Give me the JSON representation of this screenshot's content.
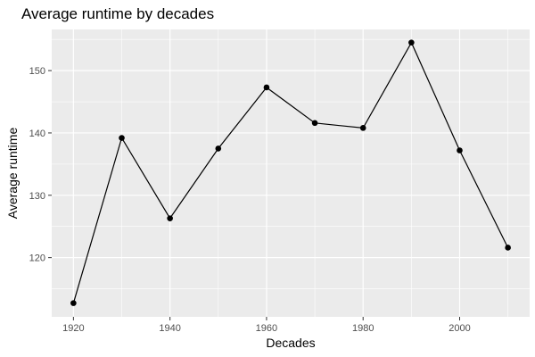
{
  "chart_data": {
    "type": "line",
    "title": "Average runtime by decades",
    "xlabel": "Decades",
    "ylabel": "Average runtime",
    "x": [
      1920,
      1930,
      1940,
      1950,
      1960,
      1970,
      1980,
      1990,
      2000,
      2010
    ],
    "series": [
      {
        "values": [
          112.7,
          139.2,
          126.3,
          137.5,
          147.3,
          141.6,
          140.8,
          154.5,
          137.2,
          121.6
        ]
      }
    ],
    "xlim": [
      1915.5,
      2014.5
    ],
    "ylim": [
      110.5,
      156.6
    ],
    "x_ticks": [
      1920,
      1940,
      1960,
      1980,
      2000
    ],
    "x_tick_labels": [
      "1920",
      "1940",
      "1960",
      "1980",
      "2000"
    ],
    "y_ticks": [
      120,
      130,
      140,
      150
    ],
    "y_tick_labels": [
      "120",
      "130",
      "140",
      "150"
    ],
    "grid": true,
    "panel_background": "#ebebeb",
    "grid_color": "#ffffff",
    "line_color": "#000000",
    "point_color": "#000000"
  }
}
